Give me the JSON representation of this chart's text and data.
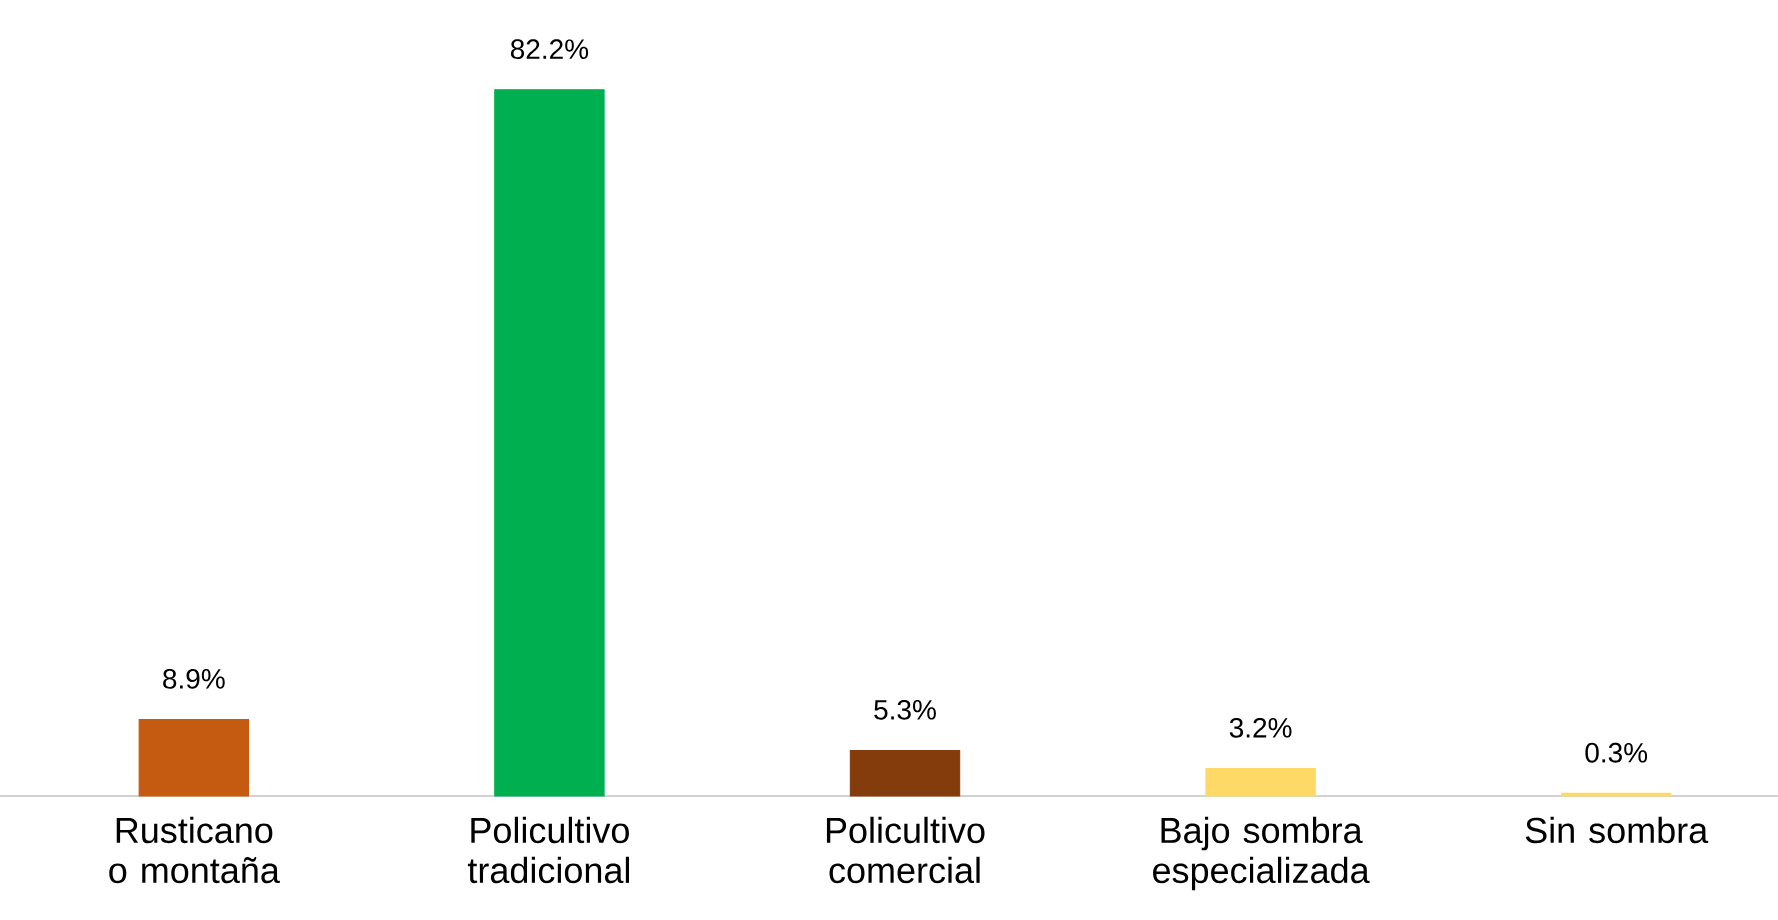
{
  "chart_data": {
    "type": "bar",
    "categories": [
      "Rusticano o montaña",
      "Policultivo tradicional",
      "Policultivo comercial",
      "Bajo sombra especializada",
      "Sin sombra"
    ],
    "values": [
      8.9,
      82.2,
      5.3,
      3.2,
      0.3
    ],
    "colors": [
      "#c55a11",
      "#00b050",
      "#843c0c",
      "#ffd966",
      "#ffd966"
    ],
    "value_labels": [
      "8.9%",
      "82.2%",
      "5.3%",
      "3.2%",
      "0.3%"
    ]
  }
}
